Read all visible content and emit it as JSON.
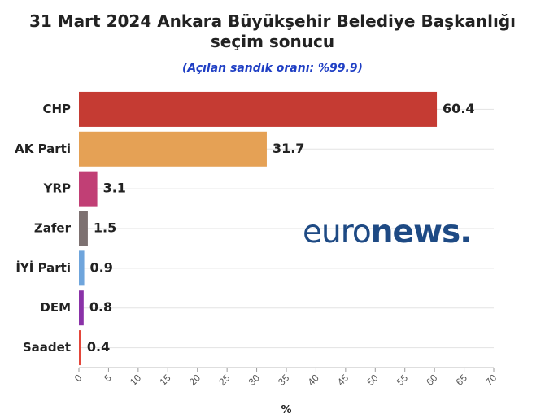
{
  "chart_data": {
    "type": "bar",
    "orientation": "horizontal",
    "title": "31 Mart 2024 Ankara Büyükşehir Belediye Başkanlığı seçim sonucu",
    "title_line1": "31 Mart 2024 Ankara Büyükşehir Belediye Başkanlığı",
    "title_line2": "seçim sonucu",
    "subtitle": "(Açılan sandık oranı: %99.9)",
    "categories": [
      "CHP",
      "AK Parti",
      "YRP",
      "Zafer",
      "İYİ Parti",
      "DEM",
      "Saadet"
    ],
    "values": [
      60.4,
      31.7,
      3.1,
      1.5,
      0.9,
      0.8,
      0.4
    ],
    "value_labels": [
      "60.4",
      "31.7",
      "3.1",
      "1.5",
      "0.9",
      "0.8",
      "0.4"
    ],
    "colors": [
      "#c53b33",
      "#e5a155",
      "#c13f75",
      "#7d7171",
      "#6fa5dc",
      "#8a32a8",
      "#e3463a"
    ],
    "xlabel": "%",
    "xlim": [
      0,
      70
    ],
    "xticks": [
      "0",
      "5",
      "10",
      "15",
      "20",
      "25",
      "30",
      "35",
      "40",
      "45",
      "50",
      "55",
      "60",
      "65",
      "70"
    ],
    "grid": true
  },
  "logo": {
    "text_light": "euro",
    "text_bold": "news",
    "dot": "."
  }
}
